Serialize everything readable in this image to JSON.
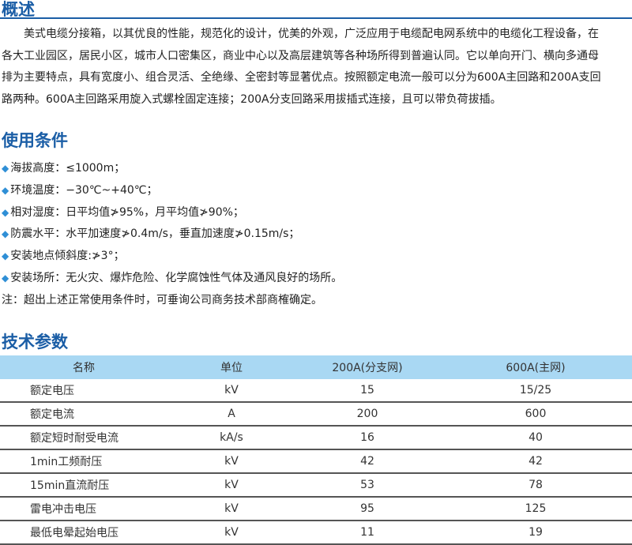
{
  "overview": {
    "title": "概述",
    "paragraph": [
      "美式电缆分接箱，以其优良的性能，规范化的设计，优美的外观，广泛应用于电缆配电网系统中的电缆化工程设备，在",
      "各大工业园区，居民小区，城市人口密集区，商业中心以及高层建筑等各种场所得到普遍认同。它以单向开门、横向多通母",
      "排为主要特点，具有宽度小、组合灵活、全绝缘、全密封等显著优点。按照额定电流一般可以分为600A主回路和200A支回",
      "路两种。600A主回路采用旋入式螺栓固定连接；200A分支回路采用拔插式连接，且可以带负荷拔插。"
    ]
  },
  "conditions": {
    "title": "使用条件",
    "bullet": "◆",
    "items": [
      "海拔高度：≤1000m；",
      "环境温度：−30℃~+40℃；",
      "相对湿度：日平均值≯95%，月平均值≯90%；",
      "防震水平：水平加速度≯0.4m/s，垂直加速度≯0.15m/s；",
      "安装地点倾斜度:≯3°；",
      "安装场所：无火灾、爆炸危险、化学腐蚀性气体及通风良好的场所。"
    ],
    "note": "注：超出上述正常使用条件时，可垂询公司商务技术部商榷确定。"
  },
  "params": {
    "title": "技术参数",
    "headers": [
      "名称",
      "单位",
      "200A(分支网)",
      "600A(主网)"
    ],
    "rows": [
      [
        "额定电压",
        "kV",
        "15",
        "15/25"
      ],
      [
        "额定电流",
        "A",
        "200",
        "600"
      ],
      [
        "额定短时耐受电流",
        "kA/s",
        "16",
        "40"
      ],
      [
        "1min工频耐压",
        "kV",
        "42",
        "42"
      ],
      [
        "15min直流耐压",
        "kV",
        "53",
        "78"
      ],
      [
        "雷电冲击电压",
        "kV",
        "95",
        "125"
      ],
      [
        "最低电晕起始电压",
        "kV",
        "11",
        "19"
      ]
    ]
  },
  "colors": {
    "heading": "#1b5ea6",
    "table_header": "#a9d8f3",
    "bullet": "#2f8fd6"
  }
}
